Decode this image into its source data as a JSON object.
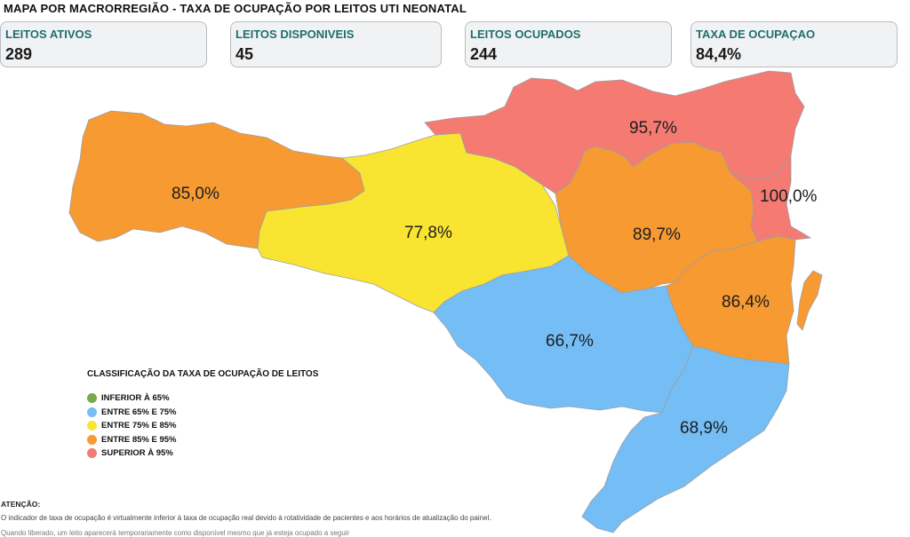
{
  "header": {
    "title": "MAPA POR MACRORREGIÃO - TAXA DE OCUPAÇÃO POR LEITOS UTI NEONATAL"
  },
  "cards": [
    {
      "label": "LEITOS ATIVOS",
      "value": "289"
    },
    {
      "label": "LEITOS DISPONIVEIS",
      "value": "45"
    },
    {
      "label": "LEITOS OCUPADOS",
      "value": "244"
    },
    {
      "label": "TAXA DE OCUPAÇAO",
      "value": "84,4%"
    }
  ],
  "colors": {
    "green": "#7aa84a",
    "blue": "#74bdf5",
    "yellow": "#f9e531",
    "orange": "#f79a32",
    "red": "#f47a72"
  },
  "regions": [
    {
      "rate": "85,0%",
      "category": "orange"
    },
    {
      "rate": "77,8%",
      "category": "yellow"
    },
    {
      "rate": "95,7%",
      "category": "red"
    },
    {
      "rate": "100,0%",
      "category": "red"
    },
    {
      "rate": "89,7%",
      "category": "orange"
    },
    {
      "rate": "86,4%",
      "category": "orange"
    },
    {
      "rate": "66,7%",
      "category": "blue"
    },
    {
      "rate": "68,9%",
      "category": "blue"
    }
  ],
  "legend": {
    "title": "CLASSIFICAÇÃO DA TAXA DE OCUPAÇÃO DE LEITOS",
    "items": [
      {
        "label": "INFERIOR À 65%",
        "color": "#7aa84a"
      },
      {
        "label": "ENTRE 65% E 75%",
        "color": "#74bdf5"
      },
      {
        "label": "ENTRE 75% E 85%",
        "color": "#f9e531"
      },
      {
        "label": "ENTRE 85% E 95%",
        "color": "#f79a32"
      },
      {
        "label": "SUPERIOR À 95%",
        "color": "#f47a72"
      }
    ]
  },
  "note": {
    "title": "ATENÇÃO:",
    "text": "O indicador de taxa de ocupação é virtualmente inferior à taxa de ocupação real devido à rotatividade de pacientes e aos horários de atualização do painel.",
    "text2": "Quando liberado, um leito aparecerá temporariamente como disponível mesmo que já esteja ocupado a seguir"
  }
}
